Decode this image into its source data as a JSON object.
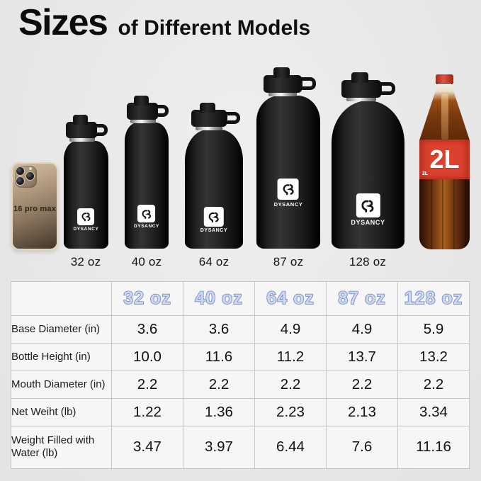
{
  "title": {
    "main": "Sizes",
    "sub": "of Different Models"
  },
  "comparison": {
    "phone_label": "16 pro max",
    "brand": "DYSANCY",
    "bottle_labels": [
      "32 oz",
      "40 oz",
      "64 oz",
      "87 oz",
      "128 oz"
    ],
    "cola_label": "2L",
    "cola_small_label": "2L"
  },
  "table": {
    "columns": [
      "32 oz",
      "40 oz",
      "64 oz",
      "87 oz",
      "128 oz"
    ],
    "rows": [
      {
        "label": "Base Diameter (in)",
        "values": [
          "3.6",
          "3.6",
          "4.9",
          "4.9",
          "5.9"
        ]
      },
      {
        "label": "Bottle Height (in)",
        "values": [
          "10.0",
          "11.6",
          "11.2",
          "13.7",
          "13.2"
        ]
      },
      {
        "label": "Mouth Diameter (in)",
        "values": [
          "2.2",
          "2.2",
          "2.2",
          "2.2",
          "2.2"
        ]
      },
      {
        "label": "Net Weiht (lb)",
        "values": [
          "1.22",
          "1.36",
          "2.23",
          "2.13",
          "3.34"
        ]
      },
      {
        "label": "Weight Filled with Water (lb)",
        "values": [
          "3.47",
          "3.97",
          "6.44",
          "7.6",
          "11.16"
        ]
      }
    ]
  },
  "colors": {
    "background": "#e8e8e8",
    "table_cell": "#f6f6f6",
    "table_border": "#c7c7c7",
    "header_fill": "#ccd7f1",
    "header_stroke": "#6d83c1",
    "bottle_black": "#1a1a1a",
    "cola_label_red": "#dc412f"
  },
  "chart_data": {
    "type": "table",
    "title": "Sizes of Different Models",
    "columns": [
      "32 oz",
      "40 oz",
      "64 oz",
      "87 oz",
      "128 oz"
    ],
    "rows": [
      {
        "label": "Base Diameter (in)",
        "values": [
          3.6,
          3.6,
          4.9,
          4.9,
          5.9
        ]
      },
      {
        "label": "Bottle Height (in)",
        "values": [
          10.0,
          11.6,
          11.2,
          13.7,
          13.2
        ]
      },
      {
        "label": "Mouth Diameter (in)",
        "values": [
          2.2,
          2.2,
          2.2,
          2.2,
          2.2
        ]
      },
      {
        "label": "Net Weiht (lb)",
        "values": [
          1.22,
          1.36,
          2.23,
          2.13,
          3.34
        ]
      },
      {
        "label": "Weight Filled with Water (lb)",
        "values": [
          3.47,
          3.97,
          6.44,
          7.6,
          11.16
        ]
      }
    ]
  }
}
